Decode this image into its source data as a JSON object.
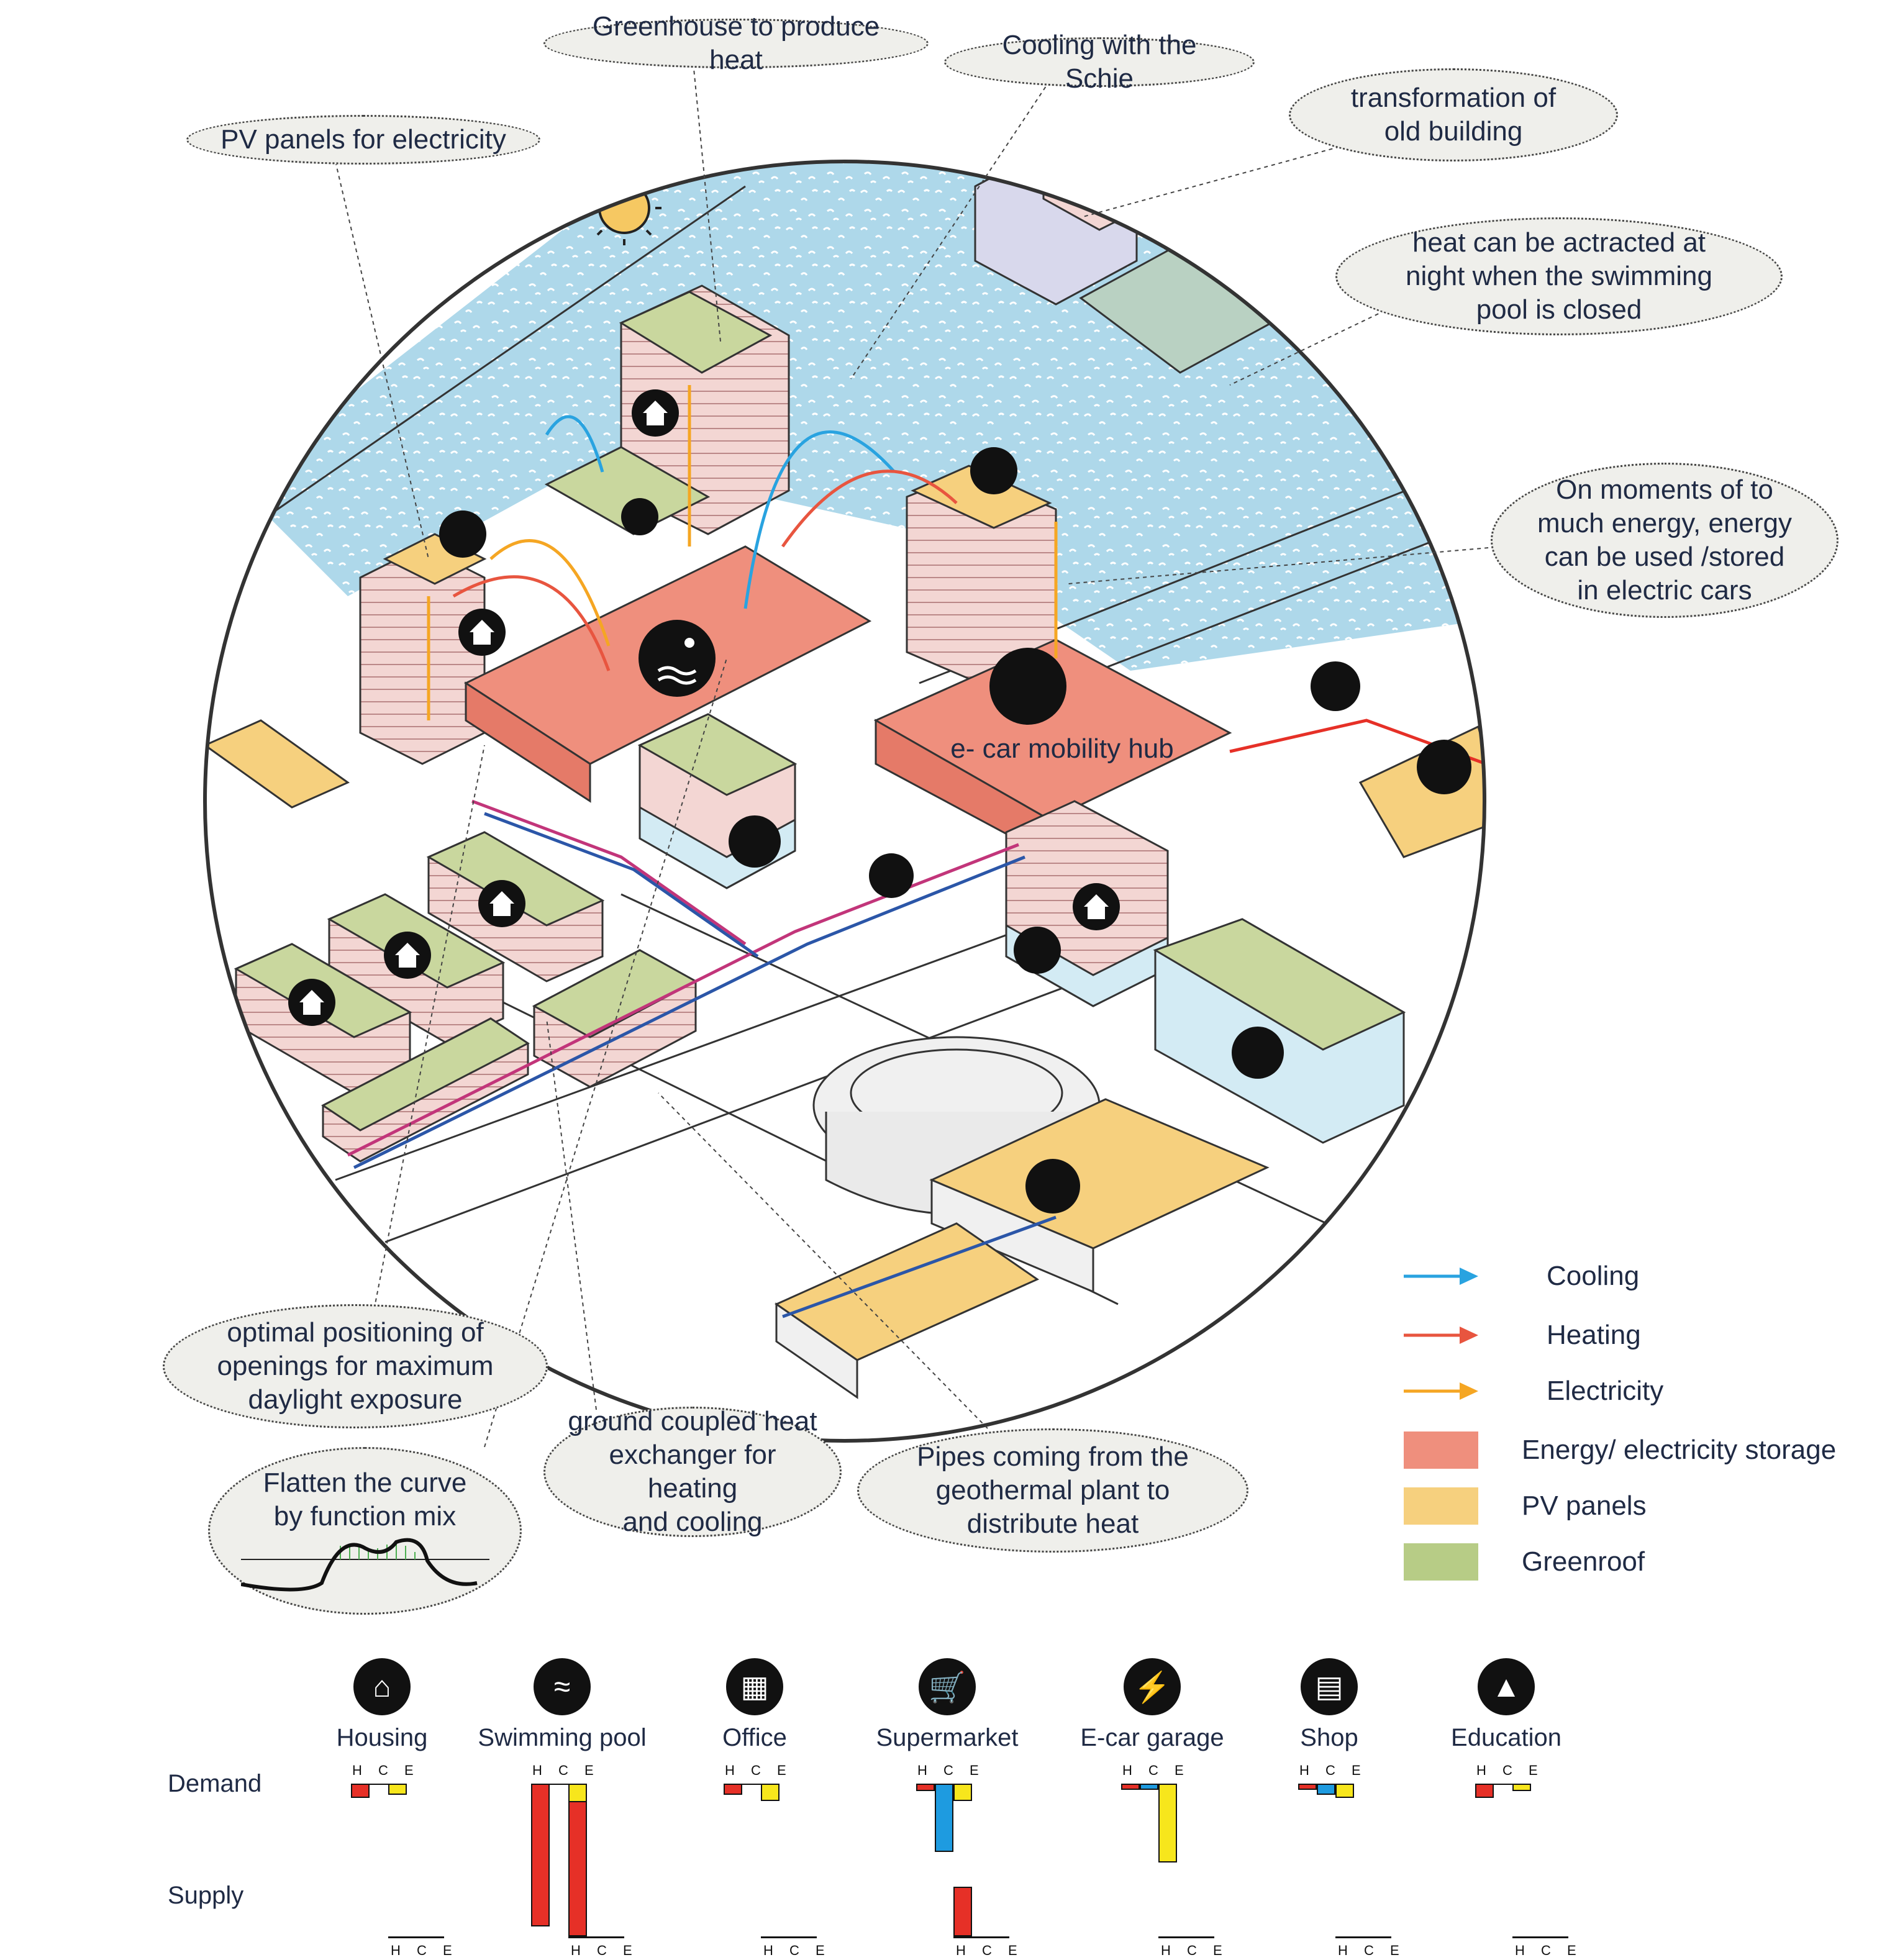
{
  "callouts": {
    "pv_panels": "PV panels for electricity",
    "greenhouse": "Greenhouse to produce heat",
    "cooling_schie": "Cooling with the Schie",
    "transformation": "transformation of\nold building",
    "heat_night": "heat can be actracted at\nnight when the swimming\npool is closed",
    "energy_cars": "On moments of to\nmuch energy, energy\ncan be used /stored\nin electric cars",
    "openings": "optimal positioning of\nopenings for maximum\ndaylight exposure",
    "ground_coupled": "ground coupled heat\nexchanger for heating\nand cooling",
    "pipes": "Pipes coming from the\ngeothermal plant to\ndistribute heat",
    "flatten": "Flatten the curve\nby function mix"
  },
  "diagram": {
    "mobility_hub_label": "e- car mobility hub"
  },
  "legend": {
    "items": [
      {
        "label": "Cooling",
        "kind": "arrow",
        "color": "#29a3e0"
      },
      {
        "label": "Heating",
        "kind": "arrow",
        "color": "#e8553f"
      },
      {
        "label": "Electricity",
        "kind": "arrow",
        "color": "#f5a623"
      },
      {
        "label": "Energy/ electricity storage",
        "kind": "swatch",
        "color": "#ef8f7d"
      },
      {
        "label": "PV panels",
        "kind": "swatch",
        "color": "#f6d07e"
      },
      {
        "label": "Greenroof",
        "kind": "swatch",
        "color": "#b7cc86"
      }
    ]
  },
  "functions": {
    "row_labels": {
      "demand": "Demand",
      "supply": "Supply"
    },
    "hce_label": "H C E",
    "colors": {
      "H": "#e63027",
      "C": "#1e9be0",
      "E": "#f7e61c"
    },
    "items": [
      {
        "label": "Housing",
        "icon": "house-icon",
        "demand": {
          "H": 0.1,
          "C": 0.0,
          "E": 0.08
        },
        "supply": {
          "H": 0,
          "C": 0,
          "E": 0
        }
      },
      {
        "label": "Swimming pool",
        "icon": "swimmer-icon",
        "demand": {
          "H": 1.0,
          "C": 0.0,
          "E": 0.28
        },
        "supply": {
          "H": 0.95,
          "C": 0,
          "E": 0
        }
      },
      {
        "label": "Office",
        "icon": "office-building-icon",
        "demand": {
          "H": 0.08,
          "C": 0.0,
          "E": 0.12
        },
        "supply": {
          "H": 0,
          "C": 0,
          "E": 0
        }
      },
      {
        "label": "Supermarket",
        "icon": "shopping-cart-icon",
        "demand": {
          "H": 0.05,
          "C": 0.48,
          "E": 0.12
        },
        "supply": {
          "H": 0.35,
          "C": 0,
          "E": 0
        }
      },
      {
        "label": "E-car garage",
        "icon": "e-car-icon",
        "demand": {
          "H": 0.03,
          "C": 0.03,
          "E": 0.55
        },
        "supply": {
          "H": 0,
          "C": 0,
          "E": 0
        }
      },
      {
        "label": "Shop",
        "icon": "shop-front-icon",
        "demand": {
          "H": 0.04,
          "C": 0.08,
          "E": 0.1
        },
        "supply": {
          "H": 0,
          "C": 0,
          "E": 0
        }
      },
      {
        "label": "Education",
        "icon": "graduation-cap-icon",
        "demand": {
          "H": 0.1,
          "C": 0.0,
          "E": 0.05
        },
        "supply": {
          "H": 0,
          "C": 0,
          "E": 0
        }
      }
    ]
  }
}
